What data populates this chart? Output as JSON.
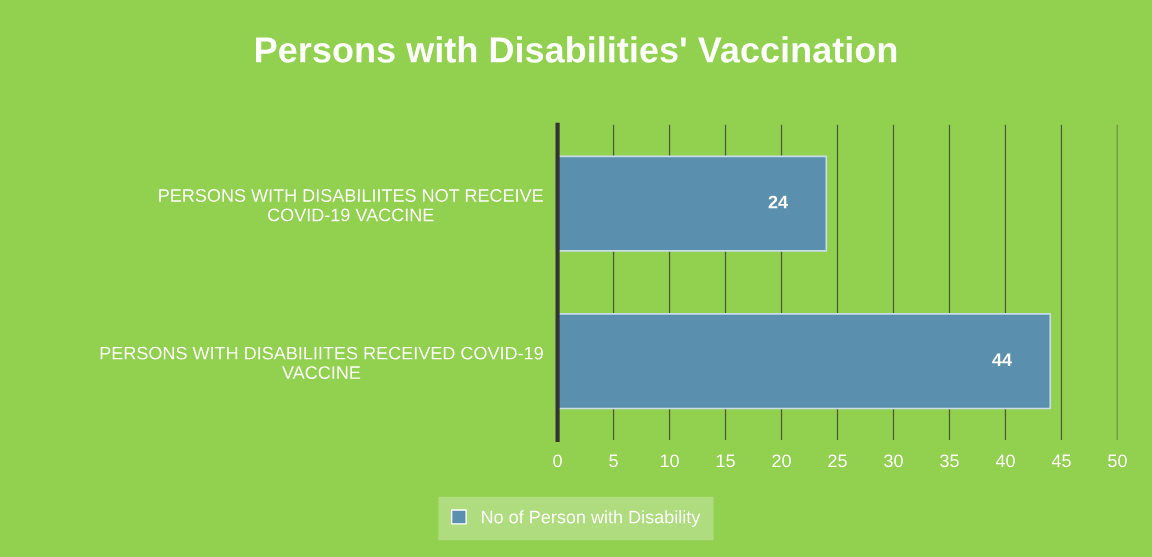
{
  "chart_data": {
    "type": "bar",
    "orientation": "horizontal",
    "title": "Persons with Disabilities' Vaccination",
    "categories": [
      "PERSONS WITH DISABILIITES NOT RECEIVE COVID-19 VACCINE",
      "PERSONS WITH DISABILIITES RECEIVED COVID-19 VACCINE"
    ],
    "series": [
      {
        "name": "No of Person with Disability",
        "color": "#5a8fad",
        "values": [
          24,
          44
        ]
      }
    ],
    "xlim": [
      0,
      50
    ],
    "xticks": [
      0,
      5,
      10,
      15,
      20,
      25,
      30,
      35,
      40,
      45,
      50
    ],
    "grid": "x",
    "legend": "bottom",
    "data_labels": true
  }
}
